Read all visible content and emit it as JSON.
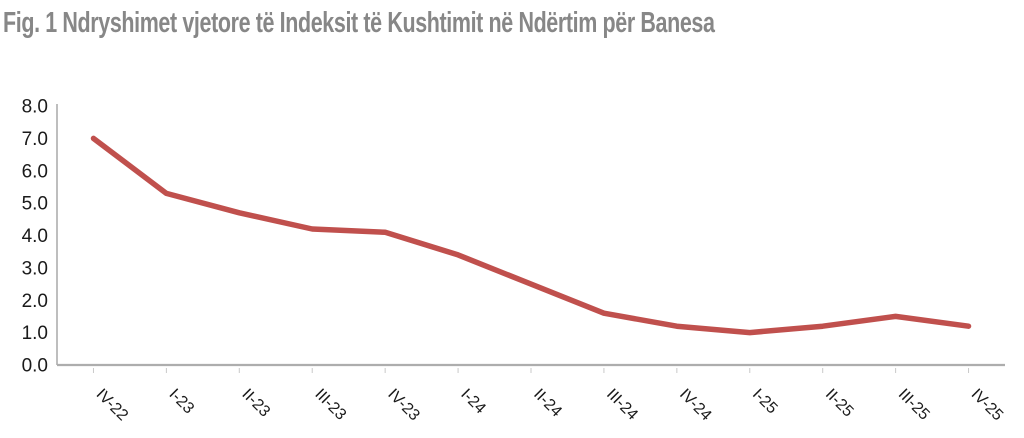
{
  "title": "Fig. 1 Ndryshimet vjetore të Indeksit të Kushtimit në Ndërtim për Banesa",
  "chart_data": {
    "type": "line",
    "title": "Fig. 1 Ndryshimet vjetore të Indeksit të Kushtimit në Ndërtim për Banesa",
    "categories": [
      "IV-22",
      "I-23",
      "II-23",
      "III-23",
      "IV-23",
      "I-24",
      "II-24",
      "III-24",
      "IV-24",
      "I-25",
      "II-25",
      "III-25",
      "IV-25"
    ],
    "series": [
      {
        "name": "Ndryshimet vjetore të Indeksit të Kushtimit në Ndërtim për Banesa",
        "values": [
          7.0,
          5.3,
          4.7,
          4.2,
          4.1,
          3.4,
          2.5,
          1.6,
          1.2,
          1.0,
          1.2,
          1.5,
          1.2
        ]
      }
    ],
    "xlabel": "",
    "ylabel": "",
    "ylim": [
      0,
      8
    ],
    "ytick_step": 1,
    "ytick_decimals": 1,
    "grid": false,
    "legend": "none",
    "line_color": "#C0504D",
    "axis_color": "#ADADAD",
    "tick_color": "#C9C9C9",
    "label_color": "#1a1a1a",
    "title_color": "#878787"
  }
}
